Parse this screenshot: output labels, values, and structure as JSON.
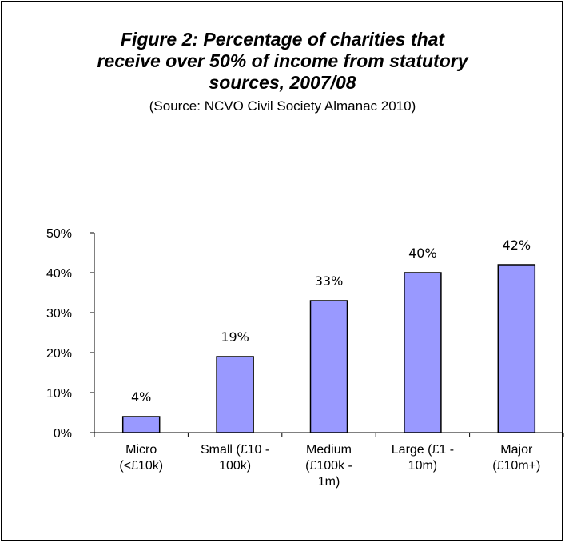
{
  "chart_data": {
    "type": "bar",
    "title": "Figure 2: Percentage of charities that\nreceive over 50% of income from statutory\nsources, 2007/08",
    "subtitle": "(Source: NCVO Civil Society Almanac 2010)",
    "categories": [
      [
        "Micro",
        "(<£10k)"
      ],
      [
        "Small (£10 -",
        "100k)"
      ],
      [
        "Medium",
        "(£100k -",
        "1m)"
      ],
      [
        "Large (£1 -",
        "10m)"
      ],
      [
        "Major",
        "(£10m+)"
      ]
    ],
    "values": [
      4,
      19,
      33,
      40,
      42
    ],
    "data_labels": [
      "4%",
      "19%",
      "33%",
      "40%",
      "42%"
    ],
    "ylim": [
      0,
      50
    ],
    "yticks": [
      "0%",
      "10%",
      "20%",
      "30%",
      "40%",
      "50%"
    ],
    "bar_color": "#9999FF",
    "bar_edge_color": "#000000",
    "grid": false,
    "legend": "none"
  }
}
